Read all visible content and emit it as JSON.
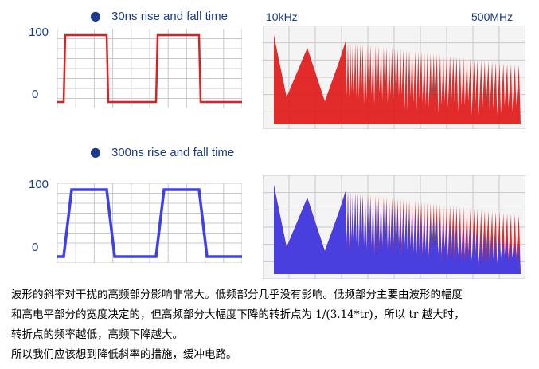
{
  "rows": [
    {
      "heading": "30ns rise and fall time",
      "y_top_label": "100",
      "y_bottom_label": "0",
      "freq_low": "10kHz",
      "freq_high": "500MHz",
      "color": "#e02020"
    },
    {
      "heading": "300ns rise and fall time",
      "y_top_label": "100",
      "y_bottom_label": "0",
      "freq_low": "",
      "freq_high": "",
      "color": "#4040e8"
    }
  ],
  "chart_data": [
    {
      "type": "line",
      "title": "30ns rise and fall time",
      "series": [
        {
          "values": [
            0,
            100,
            100,
            0,
            0,
            100,
            100,
            0,
            0
          ]
        }
      ],
      "ylim": [
        0,
        100
      ]
    },
    {
      "type": "line",
      "title": "",
      "series": [
        {
          "values": [
            1.0,
            0.95,
            0.2,
            0.9,
            0.3,
            0.85,
            0.4,
            0.8,
            0.5,
            0.7,
            0.65,
            0.6,
            0.55,
            0.5,
            0.45,
            0.4
          ]
        }
      ]
    },
    {
      "type": "line",
      "title": "300ns rise and fall time",
      "series": [
        {
          "values": [
            0,
            100,
            100,
            0,
            0,
            100,
            100,
            0,
            0
          ]
        }
      ],
      "ylim": [
        0,
        100
      ]
    },
    {
      "type": "line",
      "title": "",
      "series": [
        {
          "values": [
            1.0,
            0.95,
            0.2,
            0.9,
            0.3,
            0.85,
            0.4,
            0.8,
            0.5,
            0.7,
            0.65,
            0.6,
            0.55,
            0.5,
            0.45,
            0.4
          ]
        },
        {
          "values": [
            1.0,
            0.95,
            0.15,
            0.85,
            0.2,
            0.75,
            0.25,
            0.6,
            0.3,
            0.45,
            0.35,
            0.3,
            0.25,
            0.2,
            0.15,
            0.1
          ]
        }
      ]
    }
  ],
  "text": {
    "line1": "波形的斜率对干扰的高频部分影响非常大。低频部分几乎没有影响。低频部分主要由波形的幅度",
    "line2": "和高电平部分的宽度决定的，但高频部分大幅度下降的转折点为 1/(3.14*tr)，所以 tr 越大时，",
    "line3": "转折点的频率越低，高频下降越大。",
    "line4": "所以我们应该想到降低斜率的措施，缓冲电路。"
  }
}
